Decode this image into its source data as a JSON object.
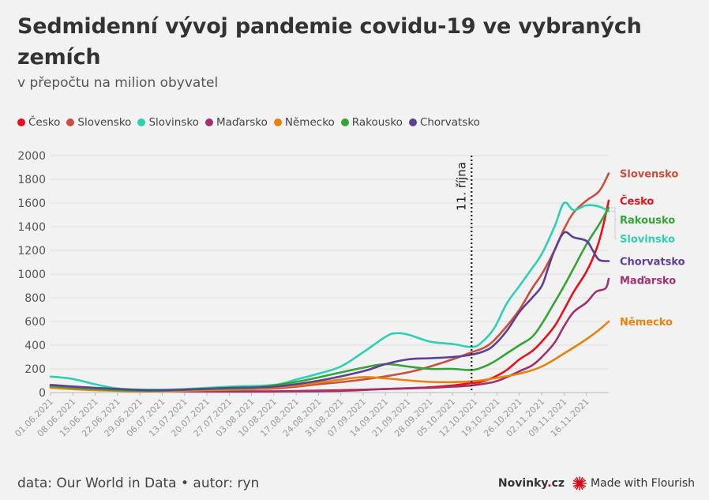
{
  "title": "Sedmidenní vývoj pandemie covidu-19 ve vybraných zemích",
  "subtitle": "v přepočtu na milion obyvatel",
  "footer": {
    "source": "data: Our World in Data • autor: ryn",
    "brand": "Novinky.cz",
    "made_with": "Made with Flourish"
  },
  "colors": {
    "Česko": "#e8101a",
    "Slovensko": "#c9503e",
    "Slovinsko": "#2dd1b0",
    "Maďarsko": "#a0306e",
    "Německo": "#e6830f",
    "Rakousko": "#35a436",
    "Chorvatsko": "#5d3f93"
  },
  "chart_data": {
    "type": "line",
    "title": "Sedmidenní vývoj pandemie covidu-19 ve vybraných zemích",
    "subtitle": "v přepočtu na milion obyvatel",
    "xlabel": "",
    "ylabel": "",
    "ylim": [
      0,
      2000
    ],
    "yticks": [
      0,
      200,
      400,
      600,
      800,
      1000,
      1200,
      1400,
      1600,
      1800,
      2000
    ],
    "xlim": [
      "2021-06-01",
      "2021-11-23"
    ],
    "xticks": [
      "01.06.2021",
      "08.06.2021",
      "15.06.2021",
      "22.06.2021",
      "29.06.2021",
      "06.07.2021",
      "13.07.2021",
      "20.07.2021",
      "27.07.2021",
      "03.08.2021",
      "10.08.2021",
      "17.08.2021",
      "24.08.2021",
      "31.08.2021",
      "07.09.2021",
      "14.09.2021",
      "21.09.2021",
      "28.09.2021",
      "05.10.2021",
      "12.10.2021",
      "19.10.2021",
      "26.10.2021",
      "02.11.2021",
      "09.11.2021",
      "16.11.2021"
    ],
    "legend_position": "top-left",
    "grid": true,
    "annotation": {
      "date": "2021-10-11",
      "label": "11. října"
    },
    "series": [
      {
        "name": "Česko",
        "points": [
          [
            "2021-06-01",
            45
          ],
          [
            "2021-06-15",
            25
          ],
          [
            "2021-07-01",
            15
          ],
          [
            "2021-07-20",
            10
          ],
          [
            "2021-08-10",
            10
          ],
          [
            "2021-08-31",
            20
          ],
          [
            "2021-09-14",
            30
          ],
          [
            "2021-09-28",
            45
          ],
          [
            "2021-10-05",
            60
          ],
          [
            "2021-10-11",
            80
          ],
          [
            "2021-10-14",
            90
          ],
          [
            "2021-10-18",
            130
          ],
          [
            "2021-10-22",
            190
          ],
          [
            "2021-10-26",
            280
          ],
          [
            "2021-10-30",
            350
          ],
          [
            "2021-11-02",
            430
          ],
          [
            "2021-11-06",
            560
          ],
          [
            "2021-11-09",
            700
          ],
          [
            "2021-11-12",
            850
          ],
          [
            "2021-11-16",
            1020
          ],
          [
            "2021-11-19",
            1200
          ],
          [
            "2021-11-21",
            1380
          ],
          [
            "2021-11-23",
            1620
          ]
        ]
      },
      {
        "name": "Slovensko",
        "points": [
          [
            "2021-06-01",
            60
          ],
          [
            "2021-06-15",
            35
          ],
          [
            "2021-07-01",
            20
          ],
          [
            "2021-07-20",
            25
          ],
          [
            "2021-08-10",
            35
          ],
          [
            "2021-08-24",
            70
          ],
          [
            "2021-09-07",
            110
          ],
          [
            "2021-09-21",
            170
          ],
          [
            "2021-09-28",
            220
          ],
          [
            "2021-10-05",
            280
          ],
          [
            "2021-10-11",
            340
          ],
          [
            "2021-10-15",
            380
          ],
          [
            "2021-10-18",
            440
          ],
          [
            "2021-10-22",
            560
          ],
          [
            "2021-10-26",
            700
          ],
          [
            "2021-10-30",
            880
          ],
          [
            "2021-11-02",
            1000
          ],
          [
            "2021-11-06",
            1200
          ],
          [
            "2021-11-09",
            1380
          ],
          [
            "2021-11-12",
            1520
          ],
          [
            "2021-11-16",
            1620
          ],
          [
            "2021-11-20",
            1700
          ],
          [
            "2021-11-23",
            1850
          ]
        ]
      },
      {
        "name": "Slovinsko",
        "points": [
          [
            "2021-06-01",
            135
          ],
          [
            "2021-06-08",
            115
          ],
          [
            "2021-06-15",
            70
          ],
          [
            "2021-06-22",
            35
          ],
          [
            "2021-07-01",
            25
          ],
          [
            "2021-07-13",
            30
          ],
          [
            "2021-07-27",
            50
          ],
          [
            "2021-08-10",
            65
          ],
          [
            "2021-08-17",
            110
          ],
          [
            "2021-08-24",
            160
          ],
          [
            "2021-08-31",
            220
          ],
          [
            "2021-09-07",
            340
          ],
          [
            "2021-09-14",
            470
          ],
          [
            "2021-09-17",
            500
          ],
          [
            "2021-09-21",
            490
          ],
          [
            "2021-09-28",
            430
          ],
          [
            "2021-10-05",
            410
          ],
          [
            "2021-10-11",
            385
          ],
          [
            "2021-10-14",
            420
          ],
          [
            "2021-10-18",
            540
          ],
          [
            "2021-10-22",
            750
          ],
          [
            "2021-10-26",
            900
          ],
          [
            "2021-10-30",
            1050
          ],
          [
            "2021-11-02",
            1170
          ],
          [
            "2021-11-06",
            1400
          ],
          [
            "2021-11-09",
            1600
          ],
          [
            "2021-11-12",
            1540
          ],
          [
            "2021-11-16",
            1580
          ],
          [
            "2021-11-20",
            1570
          ],
          [
            "2021-11-23",
            1530
          ]
        ]
      },
      {
        "name": "Maďarsko",
        "points": [
          [
            "2021-06-01",
            45
          ],
          [
            "2021-06-15",
            25
          ],
          [
            "2021-07-01",
            15
          ],
          [
            "2021-07-20",
            10
          ],
          [
            "2021-08-10",
            10
          ],
          [
            "2021-08-31",
            15
          ],
          [
            "2021-09-14",
            30
          ],
          [
            "2021-09-28",
            40
          ],
          [
            "2021-10-05",
            50
          ],
          [
            "2021-10-11",
            60
          ],
          [
            "2021-10-18",
            90
          ],
          [
            "2021-10-22",
            130
          ],
          [
            "2021-10-26",
            180
          ],
          [
            "2021-10-30",
            230
          ],
          [
            "2021-11-02",
            300
          ],
          [
            "2021-11-06",
            420
          ],
          [
            "2021-11-09",
            560
          ],
          [
            "2021-11-12",
            680
          ],
          [
            "2021-11-16",
            760
          ],
          [
            "2021-11-19",
            850
          ],
          [
            "2021-11-22",
            880
          ],
          [
            "2021-11-23",
            960
          ]
        ]
      },
      {
        "name": "Německo",
        "points": [
          [
            "2021-06-01",
            40
          ],
          [
            "2021-06-15",
            20
          ],
          [
            "2021-07-01",
            10
          ],
          [
            "2021-07-20",
            20
          ],
          [
            "2021-08-03",
            30
          ],
          [
            "2021-08-17",
            60
          ],
          [
            "2021-08-31",
            110
          ],
          [
            "2021-09-07",
            130
          ],
          [
            "2021-09-14",
            120
          ],
          [
            "2021-09-28",
            90
          ],
          [
            "2021-10-11",
            95
          ],
          [
            "2021-10-18",
            120
          ],
          [
            "2021-10-26",
            160
          ],
          [
            "2021-11-02",
            220
          ],
          [
            "2021-11-09",
            330
          ],
          [
            "2021-11-16",
            450
          ],
          [
            "2021-11-20",
            530
          ],
          [
            "2021-11-23",
            600
          ]
        ]
      },
      {
        "name": "Rakousko",
        "points": [
          [
            "2021-06-01",
            55
          ],
          [
            "2021-06-15",
            30
          ],
          [
            "2021-07-01",
            15
          ],
          [
            "2021-07-20",
            30
          ],
          [
            "2021-08-03",
            40
          ],
          [
            "2021-08-17",
            90
          ],
          [
            "2021-08-31",
            170
          ],
          [
            "2021-09-07",
            210
          ],
          [
            "2021-09-14",
            240
          ],
          [
            "2021-09-21",
            220
          ],
          [
            "2021-09-28",
            200
          ],
          [
            "2021-10-05",
            200
          ],
          [
            "2021-10-11",
            190
          ],
          [
            "2021-10-15",
            220
          ],
          [
            "2021-10-18",
            260
          ],
          [
            "2021-10-22",
            330
          ],
          [
            "2021-10-26",
            400
          ],
          [
            "2021-10-30",
            470
          ],
          [
            "2021-11-02",
            580
          ],
          [
            "2021-11-06",
            760
          ],
          [
            "2021-11-09",
            900
          ],
          [
            "2021-11-12",
            1050
          ],
          [
            "2021-11-16",
            1250
          ],
          [
            "2021-11-20",
            1420
          ],
          [
            "2021-11-23",
            1560
          ]
        ]
      },
      {
        "name": "Chorvatsko",
        "points": [
          [
            "2021-06-01",
            65
          ],
          [
            "2021-06-15",
            40
          ],
          [
            "2021-07-01",
            20
          ],
          [
            "2021-07-13",
            25
          ],
          [
            "2021-07-27",
            40
          ],
          [
            "2021-08-10",
            50
          ],
          [
            "2021-08-24",
            100
          ],
          [
            "2021-09-07",
            180
          ],
          [
            "2021-09-14",
            240
          ],
          [
            "2021-09-21",
            280
          ],
          [
            "2021-09-28",
            290
          ],
          [
            "2021-10-05",
            300
          ],
          [
            "2021-10-11",
            320
          ],
          [
            "2021-10-15",
            350
          ],
          [
            "2021-10-18",
            400
          ],
          [
            "2021-10-22",
            520
          ],
          [
            "2021-10-26",
            680
          ],
          [
            "2021-10-30",
            800
          ],
          [
            "2021-11-02",
            900
          ],
          [
            "2021-11-04",
            1050
          ],
          [
            "2021-11-06",
            1200
          ],
          [
            "2021-11-09",
            1350
          ],
          [
            "2021-11-12",
            1310
          ],
          [
            "2021-11-16",
            1280
          ],
          [
            "2021-11-18",
            1200
          ],
          [
            "2021-11-20",
            1120
          ],
          [
            "2021-11-23",
            1110
          ]
        ]
      }
    ]
  }
}
